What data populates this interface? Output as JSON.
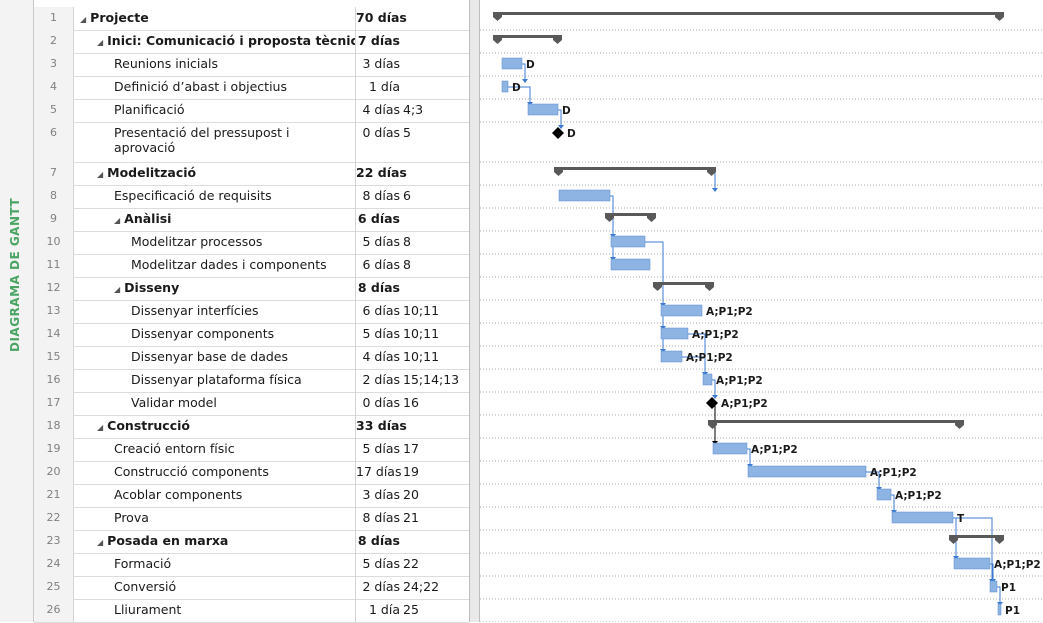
{
  "view_label": "DIAGRAMA DE GANTT",
  "colors": {
    "task_bar": "#8db4e2",
    "summary_bar": "#595959",
    "milestone": "#000000",
    "link": "#3d7bd3",
    "view_label": "#4aa564"
  },
  "tasks": [
    {
      "id": "1",
      "name": "Projecte",
      "dur": "70 días",
      "pred": "",
      "level": 0,
      "summary": true
    },
    {
      "id": "2",
      "name": "Inici: Comunicació i proposta tècnica",
      "dur": "7 días",
      "pred": "",
      "level": 1,
      "summary": true
    },
    {
      "id": "3",
      "name": "Reunions inicials",
      "dur": "3 días",
      "pred": "",
      "level": 2,
      "summary": false,
      "res": "D"
    },
    {
      "id": "4",
      "name": "Definició d’abast i objectius",
      "dur": "1 día",
      "pred": "",
      "level": 2,
      "summary": false,
      "res": "D"
    },
    {
      "id": "5",
      "name": "Planificació",
      "dur": "4 días",
      "pred": "4;3",
      "level": 2,
      "summary": false,
      "res": "D"
    },
    {
      "id": "6",
      "name": "Presentació del pressupost i",
      "name2": "aprovació",
      "dur": "0 días",
      "pred": "5",
      "level": 2,
      "summary": false,
      "res": "D"
    },
    {
      "id": "7",
      "name": "Modelització",
      "dur": "22 días",
      "pred": "",
      "level": 1,
      "summary": true
    },
    {
      "id": "8",
      "name": "Especificació de requisits",
      "dur": "8 días",
      "pred": "6",
      "level": 2,
      "summary": false,
      "res": ""
    },
    {
      "id": "9",
      "name": "Anàlisi",
      "dur": "6 días",
      "pred": "",
      "level": 2,
      "summary": true
    },
    {
      "id": "10",
      "name": "Modelitzar processos",
      "dur": "5 días",
      "pred": "8",
      "level": 3,
      "summary": false,
      "res": ""
    },
    {
      "id": "11",
      "name": "Modelitzar dades i components",
      "dur": "6 días",
      "pred": "8",
      "level": 3,
      "summary": false,
      "res": ""
    },
    {
      "id": "12",
      "name": "Disseny",
      "dur": "8 días",
      "pred": "",
      "level": 2,
      "summary": true
    },
    {
      "id": "13",
      "name": "Dissenyar interfícies",
      "dur": "6 días",
      "pred": "10;11",
      "level": 3,
      "summary": false,
      "res": "A;P1;P2"
    },
    {
      "id": "14",
      "name": "Dissenyar components",
      "dur": "5 días",
      "pred": "10;11",
      "level": 3,
      "summary": false,
      "res": "A;P1;P2"
    },
    {
      "id": "15",
      "name": "Dissenyar base de dades",
      "dur": "4 días",
      "pred": "10;11",
      "level": 3,
      "summary": false,
      "res": "A;P1;P2"
    },
    {
      "id": "16",
      "name": "Dissenyar plataforma física",
      "dur": "2 días",
      "pred": "15;14;13",
      "level": 3,
      "summary": false,
      "res": "A;P1;P2"
    },
    {
      "id": "17",
      "name": "Validar model",
      "dur": "0 días",
      "pred": "16",
      "level": 3,
      "summary": false,
      "res": "A;P1;P2"
    },
    {
      "id": "18",
      "name": "Construcció",
      "dur": "33 días",
      "pred": "",
      "level": 1,
      "summary": true
    },
    {
      "id": "19",
      "name": "Creació entorn físic",
      "dur": "5 días",
      "pred": "17",
      "level": 2,
      "summary": false,
      "res": "A;P1;P2"
    },
    {
      "id": "20",
      "name": "Construcció components",
      "dur": "17 días",
      "pred": "19",
      "level": 2,
      "summary": false,
      "res": "A;P1;P2"
    },
    {
      "id": "21",
      "name": "Acoblar components",
      "dur": "3 días",
      "pred": "20",
      "level": 2,
      "summary": false,
      "res": "A;P1;P2"
    },
    {
      "id": "22",
      "name": "Prova",
      "dur": "8 días",
      "pred": "21",
      "level": 2,
      "summary": false,
      "res": "T"
    },
    {
      "id": "23",
      "name": "Posada en marxa",
      "dur": "8 días",
      "pred": "",
      "level": 1,
      "summary": true
    },
    {
      "id": "24",
      "name": "Formació",
      "dur": "5 días",
      "pred": "22",
      "level": 2,
      "summary": false,
      "res": "A;P1;P2"
    },
    {
      "id": "25",
      "name": "Conversió",
      "dur": "2 días",
      "pred": "24;22",
      "level": 2,
      "summary": false,
      "res": "P1"
    },
    {
      "id": "26",
      "name": "Lliurament",
      "dur": "1 día",
      "pred": "25",
      "level": 2,
      "summary": false,
      "res": "P1"
    }
  ]
}
